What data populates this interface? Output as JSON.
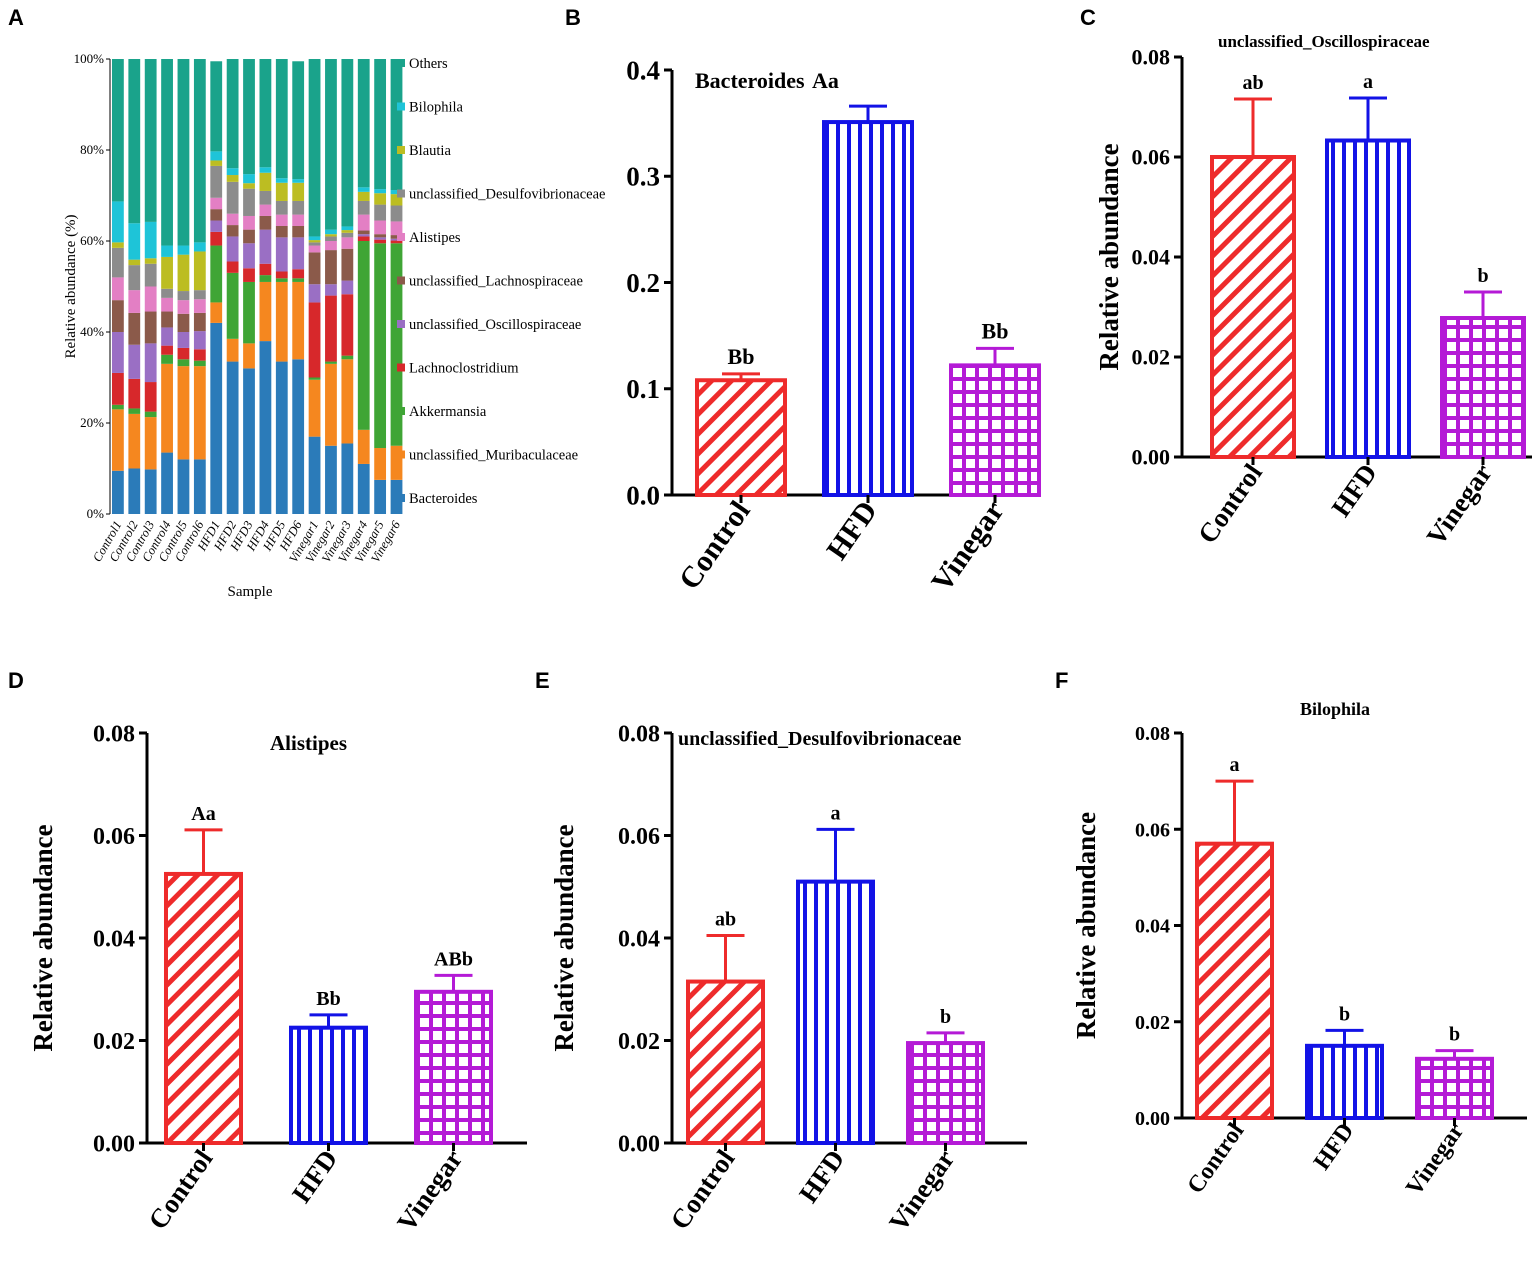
{
  "figure": {
    "panels": [
      "A",
      "B",
      "C",
      "D",
      "E",
      "F"
    ]
  },
  "colors": {
    "Control": "#ee2b2b",
    "HFD": "#1212e6",
    "Vinegar": "#b41ad6"
  },
  "chart_data": [
    {
      "panel": "A",
      "type": "bar",
      "stacked": true,
      "title": "",
      "xlabel": "Sample",
      "ylabel": "Relative abundance (%)",
      "ylim": [
        0,
        100
      ],
      "yticks": [
        "0%",
        "20%",
        "40%",
        "60%",
        "80%",
        "100%"
      ],
      "legend_position": "right",
      "categories": [
        "Control1",
        "Control2",
        "Control3",
        "Control4",
        "Control5",
        "Control6",
        "HFD1",
        "HFD2",
        "HFD3",
        "HFD4",
        "HFD5",
        "HFD6",
        "Vinegar1",
        "Vinegar2",
        "Vinegar3",
        "Vinegar4",
        "Vinegar5",
        "Vinegar6"
      ],
      "series": [
        {
          "name": "Bacteroides",
          "color": "#2b7bb9",
          "values": [
            9.5,
            10,
            9.8,
            13.5,
            12,
            12,
            42,
            33.5,
            32,
            38,
            33.5,
            34,
            17,
            15,
            15.5,
            11,
            7.5,
            7.5
          ]
        },
        {
          "name": "unclassified_Muribaculaceae",
          "color": "#f5871f",
          "values": [
            13.5,
            12,
            11.5,
            19.5,
            20.5,
            20.5,
            4.5,
            5,
            5.5,
            13,
            17.5,
            17,
            12.5,
            18,
            18.5,
            7.5,
            7,
            7.5
          ]
        },
        {
          "name": "Akkermansia",
          "color": "#3fa535",
          "values": [
            1,
            1.2,
            1.2,
            2,
            1.5,
            1.2,
            12.5,
            14.5,
            13.5,
            1.5,
            0.8,
            0.8,
            0.5,
            0.5,
            0.8,
            41.5,
            45,
            44.5
          ]
        },
        {
          "name": "Lachnoclostridium",
          "color": "#d7282b",
          "values": [
            7,
            6.5,
            6.5,
            2,
            2.5,
            2.5,
            3,
            2.5,
            3,
            2.5,
            1.5,
            2,
            16.5,
            14.5,
            13.5,
            1,
            0.8,
            0.6
          ]
        },
        {
          "name": "unclassified_Oscillospiraceae",
          "color": "#9a6fc4",
          "values": [
            9,
            7.5,
            8.5,
            4,
            3.5,
            4,
            2.5,
            5.5,
            5.5,
            7.5,
            7.5,
            7,
            4,
            2.5,
            3,
            0.5,
            0.5,
            0.4
          ]
        },
        {
          "name": "unclassified_Lachnospiraceae",
          "color": "#8b5a4a",
          "values": [
            7,
            7,
            7,
            3.5,
            4,
            4,
            2.5,
            2.5,
            3,
            3,
            2.5,
            2.5,
            7,
            7.5,
            7,
            0.8,
            0.7,
            0.8
          ]
        },
        {
          "name": "Alistipes",
          "color": "#e37fc4",
          "values": [
            5,
            5,
            5.5,
            3,
            3,
            3,
            2.5,
            2.5,
            3,
            2.5,
            2.5,
            2.5,
            1.5,
            2,
            2.5,
            3.5,
            3,
            3
          ]
        },
        {
          "name": "unclassified_Desulfovibrionaceae",
          "color": "#8c8c8c",
          "values": [
            6.5,
            5.5,
            5,
            2,
            2,
            2,
            7,
            7,
            6,
            3,
            3,
            3,
            0.7,
            1,
            1,
            3,
            3.5,
            3.5
          ]
        },
        {
          "name": "Blautia",
          "color": "#bcbd22",
          "values": [
            1.2,
            1.2,
            1.2,
            7,
            8,
            8.5,
            1.2,
            1.5,
            1.2,
            4,
            4,
            4,
            0.5,
            0.5,
            0.6,
            2,
            2.5,
            2.5
          ]
        },
        {
          "name": "Bilophila",
          "color": "#1ec4d8",
          "values": [
            9,
            8,
            8,
            2.5,
            2,
            2,
            2,
            1.5,
            2,
            1.2,
            1,
            0.8,
            0.8,
            1,
            0.8,
            1,
            0.9,
            0.9
          ]
        },
        {
          "name": "Others",
          "color": "#1aa38b",
          "values": [
            31.3,
            36.1,
            35.8,
            41,
            41,
            40.3,
            19.8,
            24,
            25.3,
            23.8,
            26.2,
            25.9,
            39,
            38,
            36.8,
            28.2,
            28.6,
            28.8
          ]
        }
      ]
    },
    {
      "panel": "B",
      "type": "bar",
      "title": "Bacteroides",
      "title_annotation": "Aa",
      "xlabel": "",
      "ylabel": "",
      "ylim": [
        0,
        0.4
      ],
      "yticks": [
        "0.0",
        "0.1",
        "0.2",
        "0.3",
        "0.4"
      ],
      "categories": [
        "Control",
        "HFD",
        "Vinegar"
      ],
      "values": [
        0.108,
        0.351,
        0.122
      ],
      "errors": [
        0.006,
        0.015,
        0.016
      ],
      "labels": [
        "Bb",
        "",
        "Bb"
      ],
      "patterns": [
        "diagonal",
        "vertical",
        "grid"
      ]
    },
    {
      "panel": "C",
      "type": "bar",
      "title": "unclassified_Oscillospiraceae",
      "xlabel": "",
      "ylabel": "Relative abundance",
      "ylim": [
        0,
        0.08
      ],
      "yticks": [
        "0.00",
        "0.02",
        "0.04",
        "0.06",
        "0.08"
      ],
      "categories": [
        "Control",
        "HFD",
        "Vinegar"
      ],
      "values": [
        0.06,
        0.0633,
        0.0278
      ],
      "errors": [
        0.0116,
        0.0085,
        0.0052
      ],
      "labels": [
        "ab",
        "a",
        "b"
      ],
      "patterns": [
        "diagonal",
        "vertical",
        "grid"
      ]
    },
    {
      "panel": "D",
      "type": "bar",
      "title": "Alistipes",
      "xlabel": "",
      "ylabel": "Relative abundance",
      "ylim": [
        0,
        0.08
      ],
      "yticks": [
        "0.00",
        "0.02",
        "0.04",
        "0.06",
        "0.08"
      ],
      "categories": [
        "Control",
        "HFD",
        "Vinegar"
      ],
      "values": [
        0.0525,
        0.0225,
        0.0295
      ],
      "errors": [
        0.0086,
        0.0025,
        0.0032
      ],
      "labels": [
        "Aa",
        "Bb",
        "ABb"
      ],
      "patterns": [
        "diagonal",
        "vertical",
        "grid"
      ]
    },
    {
      "panel": "E",
      "type": "bar",
      "title": "unclassified_Desulfovibrionaceae",
      "xlabel": "",
      "ylabel": "Relative abundance",
      "ylim": [
        0,
        0.08
      ],
      "yticks": [
        "0.00",
        "0.02",
        "0.04",
        "0.06",
        "0.08"
      ],
      "categories": [
        "Control",
        "HFD",
        "Vinegar"
      ],
      "values": [
        0.0315,
        0.051,
        0.0195
      ],
      "errors": [
        0.009,
        0.0102,
        0.002
      ],
      "labels": [
        "ab",
        "a",
        "b"
      ],
      "patterns": [
        "diagonal",
        "vertical",
        "grid"
      ]
    },
    {
      "panel": "F",
      "type": "bar",
      "title": "Bilophila",
      "xlabel": "",
      "ylabel": "Relative abundance",
      "ylim": [
        0,
        0.08
      ],
      "yticks": [
        "0.00",
        "0.02",
        "0.04",
        "0.06",
        "0.08"
      ],
      "categories": [
        "Control",
        "HFD",
        "Vinegar"
      ],
      "values": [
        0.057,
        0.015,
        0.0123
      ],
      "errors": [
        0.013,
        0.0032,
        0.0017
      ],
      "labels": [
        "a",
        "b",
        "b"
      ],
      "patterns": [
        "diagonal",
        "vertical",
        "grid"
      ]
    }
  ]
}
